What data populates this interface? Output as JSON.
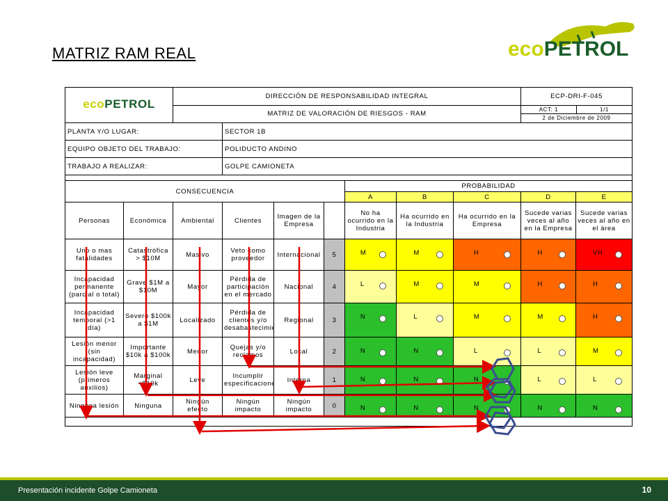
{
  "slide_title": "MATRIZ RAM REAL",
  "logo": {
    "eco": "eco",
    "pet": "PETROL"
  },
  "form": {
    "title1": "DIRECCIÓN DE RESPONSABILIDAD INTEGRAL",
    "title2": "MATRIZ DE VALORACIÓN DE RIESGOS - RAM",
    "code": "ECP-DRI-F-045",
    "act": "ACT: 1",
    "page": "1/1",
    "date": "2 de Diciembre de 2009",
    "planta_label": "PLANTA Y/O LUGAR:",
    "planta_value": "SECTOR 1B",
    "equipo_label": "EQUIPO OBJETO DEL TRABAJO:",
    "equipo_value": "POLIDUCTO ANDINO",
    "trabajo_label": "TRABAJO A REALIZAR:",
    "trabajo_value": "GOLPE CAMIONETA"
  },
  "headers": {
    "consecuencia": "CONSECUENCIA",
    "probabilidad": "PROBABILIDAD",
    "cols": [
      "Personas",
      "Económica",
      "Ambiental",
      "Clientes",
      "Imagen de la Empresa"
    ],
    "prob_letters": [
      "A",
      "B",
      "C",
      "D",
      "E"
    ],
    "prob_desc": [
      "No ha ocurrido en la Industria",
      "Ha ocurrido en la Industria",
      "Ha ocurrido en la Empresa",
      "Sucede varias veces al año en la Empresa",
      "Sucede varias veces al año en el área"
    ]
  },
  "rows": [
    {
      "personas": "Uno o mas fatalidades",
      "economica": "Catastrófica > $10M",
      "ambiental": "Masivo",
      "clientes": "Veto como proveedor",
      "imagen": "Internacional",
      "level": "5",
      "cells": [
        "M",
        "M",
        "H",
        "H",
        "VH"
      ]
    },
    {
      "personas": "Incapacidad permanente (parcial o total)",
      "economica": "Grave $1M a $10M",
      "ambiental": "Mayor",
      "clientes": "Pérdida de participación en el mercado",
      "imagen": "Nacional",
      "level": "4",
      "cells": [
        "L",
        "M",
        "M",
        "H",
        "H"
      ]
    },
    {
      "personas": "Incapacidad temporal (>1 día)",
      "economica": "Severo $100k a $1M",
      "ambiental": "Localizado",
      "clientes": "Pérdida de clientes y/o desabastecimiento",
      "imagen": "Regional",
      "level": "3",
      "cells": [
        "N",
        "L",
        "M",
        "M",
        "H"
      ]
    },
    {
      "personas": "Lesión menor (sin incapacidad)",
      "economica": "Importante $10k a $100k",
      "ambiental": "Menor",
      "clientes": "Quejas y/o reclamos",
      "imagen": "Local",
      "level": "2",
      "cells": [
        "N",
        "N",
        "L",
        "L",
        "M"
      ]
    },
    {
      "personas": "Lesión leve (primeros auxilios)",
      "economica": "Marginal <$10k",
      "ambiental": "Leve",
      "clientes": "Incumplir especificaciones",
      "imagen": "Interna",
      "level": "1",
      "cells": [
        "N",
        "N",
        "N",
        "L",
        "L"
      ]
    },
    {
      "personas": "Ninguna lesión",
      "economica": "Ninguna",
      "ambiental": "Ningún efecto",
      "clientes": "Ningún impacto",
      "imagen": "Ningún impacto",
      "level": "0",
      "cells": [
        "N",
        "N",
        "N",
        "N",
        "N"
      ]
    }
  ],
  "cell_colors": {
    "N": "#2bbf2b",
    "L": "#ffff99",
    "M": "#ffff00",
    "H": "#ff6600",
    "VH": "#ff0000"
  },
  "footer": {
    "text": "Presentación incidente Golpe Camioneta",
    "page": "10"
  }
}
